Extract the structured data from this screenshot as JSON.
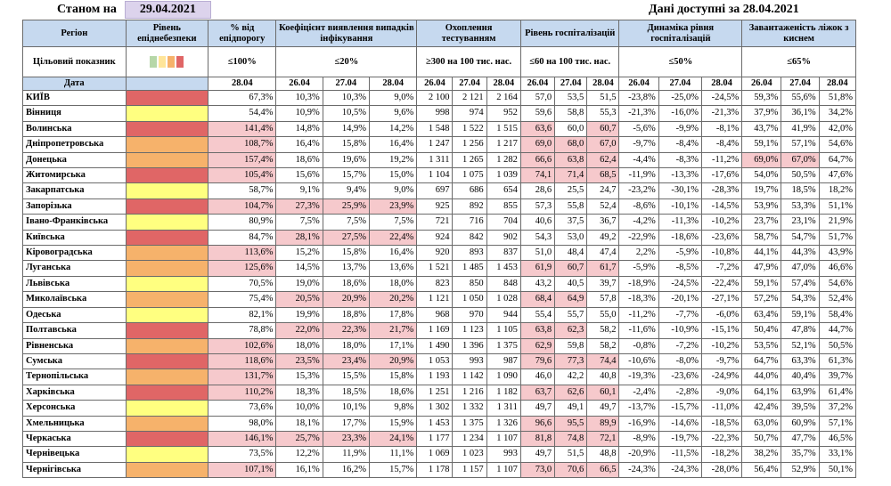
{
  "header": {
    "as_of_label": "Станом на",
    "as_of_date": "29.04.2021",
    "data_available": "Дані доступні за  28.04.2021"
  },
  "columns": {
    "region": "Регіон",
    "level": "Рівень епіднебезпеки",
    "threshold": "% від епідпорогу",
    "infection": "Коефіцієнт виявлення випадків інфікування",
    "testing": "Охоплення тестуванням",
    "hospital": "Рівень госпіталізацій",
    "dynamics": "Динаміка рівня госпіталізацій",
    "oxygen": "Завантаженість ліжок з киснем"
  },
  "target": {
    "label": "Цільовий показник",
    "threshold": "≤100%",
    "infection": "≤20%",
    "testing": "≥300 на 100 тис. нас.",
    "hospital": "≤60 на 100 тис. нас.",
    "dynamics": "≤50%",
    "oxygen": "≤65%"
  },
  "dates": {
    "label": "Дата",
    "threshold": "28.04",
    "d1": "26.04",
    "d2": "27.04",
    "d3": "28.04"
  },
  "legend_colors": [
    "#b6d7a8",
    "#ffe599",
    "#f6b26b",
    "#e06666"
  ],
  "level_colors": {
    "red": "#e06666",
    "orange": "#f6b26b",
    "yellow": "#ffff80",
    "pink": "#f6c9cc"
  },
  "rows": [
    {
      "region": "КИЇВ",
      "level": "red",
      "thr": "67,3%",
      "inf": [
        "10,3%",
        "10,3%",
        "9,0%"
      ],
      "test": [
        "2 100",
        "2 121",
        "2 164"
      ],
      "hosp": [
        "57,0",
        "53,5",
        "51,5"
      ],
      "dyn": [
        "-23,8%",
        "-25,0%",
        "-24,5%"
      ],
      "oxy": [
        "59,3%",
        "55,6%",
        "51,8%"
      ]
    },
    {
      "region": "Вінниця",
      "level": "yellow",
      "thr": "54,4%",
      "inf": [
        "10,9%",
        "10,5%",
        "9,6%"
      ],
      "test": [
        "998",
        "974",
        "952"
      ],
      "hosp": [
        "59,6",
        "58,8",
        "55,3"
      ],
      "dyn": [
        "-21,3%",
        "-16,0%",
        "-21,3%"
      ],
      "oxy": [
        "37,9%",
        "36,1%",
        "34,2%"
      ]
    },
    {
      "region": "Волинська",
      "level": "red",
      "thr": "141,4%",
      "thrP": true,
      "inf": [
        "14,8%",
        "14,9%",
        "14,2%"
      ],
      "test": [
        "1 548",
        "1 522",
        "1 515"
      ],
      "hosp": [
        "63,6",
        "60,0",
        "60,7"
      ],
      "hospP": [
        true,
        false,
        true
      ],
      "dyn": [
        "-5,6%",
        "-9,9%",
        "-8,1%"
      ],
      "oxy": [
        "43,7%",
        "41,9%",
        "42,0%"
      ]
    },
    {
      "region": "Дніпропетровська",
      "level": "orange",
      "thr": "108,7%",
      "thrP": true,
      "inf": [
        "16,4%",
        "15,8%",
        "16,4%"
      ],
      "test": [
        "1 247",
        "1 256",
        "1 217"
      ],
      "hosp": [
        "69,0",
        "68,0",
        "67,0"
      ],
      "hospP": [
        true,
        true,
        true
      ],
      "dyn": [
        "-9,7%",
        "-8,4%",
        "-8,4%"
      ],
      "oxy": [
        "59,1%",
        "57,1%",
        "54,6%"
      ]
    },
    {
      "region": "Донецька",
      "level": "orange",
      "thr": "157,4%",
      "thrP": true,
      "inf": [
        "18,6%",
        "19,6%",
        "19,2%"
      ],
      "test": [
        "1 311",
        "1 265",
        "1 282"
      ],
      "hosp": [
        "66,6",
        "63,8",
        "62,4"
      ],
      "hospP": [
        true,
        true,
        true
      ],
      "dyn": [
        "-4,4%",
        "-8,3%",
        "-11,2%"
      ],
      "oxy": [
        "69,0%",
        "67,0%",
        "64,7%"
      ],
      "oxyP": [
        true,
        true,
        false
      ]
    },
    {
      "region": "Житомирська",
      "level": "red",
      "thr": "105,4%",
      "thrP": true,
      "inf": [
        "15,6%",
        "15,7%",
        "15,0%"
      ],
      "test": [
        "1 104",
        "1 075",
        "1 039"
      ],
      "hosp": [
        "74,1",
        "71,4",
        "68,5"
      ],
      "hospP": [
        true,
        true,
        true
      ],
      "dyn": [
        "-11,9%",
        "-13,3%",
        "-17,6%"
      ],
      "oxy": [
        "54,0%",
        "50,5%",
        "47,6%"
      ]
    },
    {
      "region": "Закарпатська",
      "level": "yellow",
      "thr": "58,7%",
      "inf": [
        "9,1%",
        "9,4%",
        "9,0%"
      ],
      "test": [
        "697",
        "686",
        "654"
      ],
      "hosp": [
        "28,6",
        "25,5",
        "24,7"
      ],
      "dyn": [
        "-23,2%",
        "-30,1%",
        "-28,3%"
      ],
      "oxy": [
        "19,7%",
        "18,5%",
        "18,2%"
      ]
    },
    {
      "region": "Запорізька",
      "level": "red",
      "thr": "104,7%",
      "thrP": true,
      "inf": [
        "27,3%",
        "25,9%",
        "23,9%"
      ],
      "infP": [
        true,
        true,
        true
      ],
      "test": [
        "925",
        "892",
        "855"
      ],
      "hosp": [
        "57,3",
        "55,8",
        "52,4"
      ],
      "dyn": [
        "-8,6%",
        "-10,1%",
        "-14,5%"
      ],
      "oxy": [
        "53,9%",
        "53,3%",
        "51,1%"
      ]
    },
    {
      "region": "Івано-Франківська",
      "level": "yellow",
      "thr": "80,9%",
      "inf": [
        "7,5%",
        "7,5%",
        "7,5%"
      ],
      "test": [
        "721",
        "716",
        "704"
      ],
      "hosp": [
        "40,6",
        "37,5",
        "36,7"
      ],
      "dyn": [
        "-4,2%",
        "-11,3%",
        "-10,2%"
      ],
      "oxy": [
        "23,7%",
        "23,1%",
        "21,9%"
      ]
    },
    {
      "region": "Київська",
      "level": "red",
      "thr": "84,7%",
      "inf": [
        "28,1%",
        "27,5%",
        "22,4%"
      ],
      "infP": [
        true,
        true,
        true
      ],
      "test": [
        "924",
        "842",
        "902"
      ],
      "hosp": [
        "54,3",
        "53,0",
        "49,2"
      ],
      "dyn": [
        "-22,9%",
        "-18,6%",
        "-23,6%"
      ],
      "oxy": [
        "58,7%",
        "54,7%",
        "51,7%"
      ]
    },
    {
      "region": "Кіровоградська",
      "level": "orange",
      "thr": "113,6%",
      "thrP": true,
      "inf": [
        "15,2%",
        "15,8%",
        "16,4%"
      ],
      "test": [
        "920",
        "893",
        "837"
      ],
      "hosp": [
        "51,0",
        "48,4",
        "47,4"
      ],
      "dyn": [
        "2,2%",
        "-5,9%",
        "-10,8%"
      ],
      "oxy": [
        "44,1%",
        "44,3%",
        "43,9%"
      ]
    },
    {
      "region": "Луганська",
      "level": "orange",
      "thr": "125,6%",
      "thrP": true,
      "inf": [
        "14,5%",
        "13,7%",
        "13,6%"
      ],
      "test": [
        "1 521",
        "1 485",
        "1 453"
      ],
      "hosp": [
        "61,9",
        "60,7",
        "61,7"
      ],
      "hospP": [
        true,
        true,
        true
      ],
      "dyn": [
        "-5,9%",
        "-8,5%",
        "-7,2%"
      ],
      "oxy": [
        "47,9%",
        "47,0%",
        "46,6%"
      ]
    },
    {
      "region": "Львівська",
      "level": "yellow",
      "thr": "70,5%",
      "inf": [
        "19,0%",
        "18,6%",
        "18,0%"
      ],
      "test": [
        "823",
        "850",
        "848"
      ],
      "hosp": [
        "43,2",
        "40,5",
        "39,7"
      ],
      "dyn": [
        "-18,9%",
        "-24,5%",
        "-22,4%"
      ],
      "oxy": [
        "59,1%",
        "57,4%",
        "54,6%"
      ]
    },
    {
      "region": "Миколаївська",
      "level": "orange",
      "thr": "75,4%",
      "inf": [
        "20,5%",
        "20,9%",
        "20,2%"
      ],
      "infP": [
        true,
        true,
        true
      ],
      "test": [
        "1 121",
        "1 050",
        "1 028"
      ],
      "hosp": [
        "68,4",
        "64,9",
        "57,8"
      ],
      "hospP": [
        true,
        true,
        false
      ],
      "dyn": [
        "-18,3%",
        "-20,1%",
        "-27,1%"
      ],
      "oxy": [
        "57,2%",
        "54,3%",
        "52,4%"
      ]
    },
    {
      "region": "Одеська",
      "level": "yellow",
      "thr": "82,1%",
      "inf": [
        "19,9%",
        "18,8%",
        "17,8%"
      ],
      "test": [
        "968",
        "970",
        "944"
      ],
      "hosp": [
        "55,4",
        "55,7",
        "55,0"
      ],
      "dyn": [
        "-11,2%",
        "-7,7%",
        "-6,0%"
      ],
      "oxy": [
        "63,4%",
        "59,1%",
        "58,4%"
      ]
    },
    {
      "region": "Полтавська",
      "level": "red",
      "thr": "78,8%",
      "inf": [
        "22,0%",
        "22,3%",
        "21,7%"
      ],
      "infP": [
        true,
        true,
        true
      ],
      "test": [
        "1 169",
        "1 123",
        "1 105"
      ],
      "hosp": [
        "63,8",
        "62,3",
        "58,2"
      ],
      "hospP": [
        true,
        true,
        false
      ],
      "dyn": [
        "-11,6%",
        "-10,9%",
        "-15,1%"
      ],
      "oxy": [
        "50,4%",
        "47,8%",
        "44,7%"
      ]
    },
    {
      "region": "Рівненська",
      "level": "orange",
      "thr": "102,6%",
      "thrP": true,
      "inf": [
        "18,0%",
        "18,0%",
        "17,1%"
      ],
      "test": [
        "1 490",
        "1 396",
        "1 375"
      ],
      "hosp": [
        "62,9",
        "59,8",
        "58,2"
      ],
      "hospP": [
        true,
        false,
        false
      ],
      "dyn": [
        "-0,8%",
        "-7,2%",
        "-10,2%"
      ],
      "oxy": [
        "53,5%",
        "52,1%",
        "50,5%"
      ]
    },
    {
      "region": "Сумська",
      "level": "red",
      "thr": "118,6%",
      "thrP": true,
      "inf": [
        "23,5%",
        "23,4%",
        "20,9%"
      ],
      "infP": [
        true,
        true,
        true
      ],
      "test": [
        "1 053",
        "993",
        "987"
      ],
      "hosp": [
        "79,6",
        "77,3",
        "74,4"
      ],
      "hospP": [
        true,
        true,
        true
      ],
      "dyn": [
        "-10,6%",
        "-8,0%",
        "-9,7%"
      ],
      "oxy": [
        "64,7%",
        "63,3%",
        "61,3%"
      ]
    },
    {
      "region": "Тернопільська",
      "level": "orange",
      "thr": "131,7%",
      "thrP": true,
      "inf": [
        "15,3%",
        "15,5%",
        "15,8%"
      ],
      "test": [
        "1 193",
        "1 142",
        "1 090"
      ],
      "hosp": [
        "46,0",
        "42,2",
        "40,8"
      ],
      "dyn": [
        "-19,3%",
        "-23,6%",
        "-24,9%"
      ],
      "oxy": [
        "44,0%",
        "40,4%",
        "39,7%"
      ]
    },
    {
      "region": "Харківська",
      "level": "red",
      "thr": "110,2%",
      "thrP": true,
      "inf": [
        "18,3%",
        "18,5%",
        "18,6%"
      ],
      "test": [
        "1 251",
        "1 216",
        "1 182"
      ],
      "hosp": [
        "63,7",
        "62,6",
        "60,1"
      ],
      "hospP": [
        true,
        true,
        true
      ],
      "dyn": [
        "-2,4%",
        "-2,8%",
        "-9,0%"
      ],
      "oxy": [
        "64,1%",
        "63,9%",
        "61,4%"
      ]
    },
    {
      "region": "Херсонська",
      "level": "yellow",
      "thr": "73,6%",
      "inf": [
        "10,0%",
        "10,1%",
        "9,8%"
      ],
      "test": [
        "1 302",
        "1 332",
        "1 311"
      ],
      "hosp": [
        "49,7",
        "49,1",
        "49,7"
      ],
      "dyn": [
        "-13,7%",
        "-15,7%",
        "-11,0%"
      ],
      "oxy": [
        "42,4%",
        "39,5%",
        "37,2%"
      ]
    },
    {
      "region": "Хмельницька",
      "level": "orange",
      "thr": "98,0%",
      "inf": [
        "18,1%",
        "17,7%",
        "15,9%"
      ],
      "test": [
        "1 453",
        "1 375",
        "1 326"
      ],
      "hosp": [
        "96,6",
        "95,5",
        "89,9"
      ],
      "hospP": [
        true,
        true,
        true
      ],
      "dyn": [
        "-16,9%",
        "-14,6%",
        "-18,5%"
      ],
      "oxy": [
        "63,0%",
        "60,9%",
        "57,1%"
      ]
    },
    {
      "region": "Черкаська",
      "level": "red",
      "thr": "146,1%",
      "thrP": true,
      "inf": [
        "25,7%",
        "23,3%",
        "24,1%"
      ],
      "infP": [
        true,
        true,
        true
      ],
      "test": [
        "1 177",
        "1 234",
        "1 107"
      ],
      "hosp": [
        "81,8",
        "74,8",
        "72,1"
      ],
      "hospP": [
        true,
        true,
        true
      ],
      "dyn": [
        "-8,9%",
        "-19,7%",
        "-22,3%"
      ],
      "oxy": [
        "50,7%",
        "47,7%",
        "46,5%"
      ]
    },
    {
      "region": "Чернівецька",
      "level": "yellow",
      "thr": "73,5%",
      "inf": [
        "12,2%",
        "11,9%",
        "11,1%"
      ],
      "test": [
        "1 069",
        "1 023",
        "993"
      ],
      "hosp": [
        "49,7",
        "51,5",
        "48,8"
      ],
      "dyn": [
        "-20,9%",
        "-11,5%",
        "-18,2%"
      ],
      "oxy": [
        "38,2%",
        "35,7%",
        "33,1%"
      ]
    },
    {
      "region": "Чернігівська",
      "level": "orange",
      "thr": "107,1%",
      "thrP": true,
      "inf": [
        "16,1%",
        "16,2%",
        "15,7%"
      ],
      "test": [
        "1 178",
        "1 157",
        "1 107"
      ],
      "hosp": [
        "73,0",
        "70,6",
        "66,5"
      ],
      "hospP": [
        true,
        true,
        true
      ],
      "dyn": [
        "-24,3%",
        "-24,3%",
        "-28,0%"
      ],
      "oxy": [
        "56,4%",
        "52,9%",
        "50,1%"
      ]
    }
  ]
}
